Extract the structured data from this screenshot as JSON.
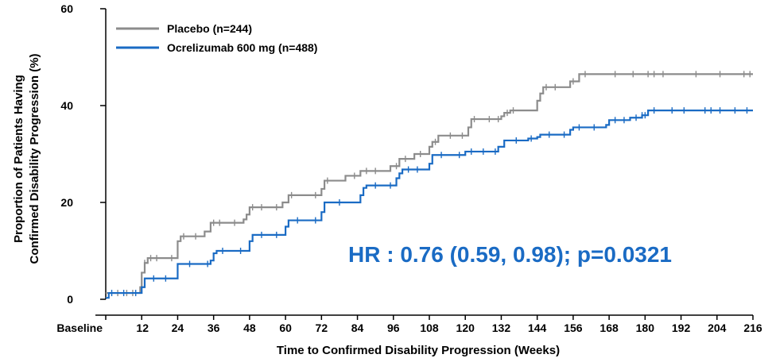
{
  "chart_data": {
    "type": "line",
    "xlabel": "Time to Confirmed Disability Progression (Weeks)",
    "ylabel": [
      "Proportion of Patients Having",
      "Confirmed Disability Progression (%)"
    ],
    "ylim": [
      0,
      60
    ],
    "xlim": [
      0,
      216
    ],
    "x_ticks": [
      "Baseline",
      "12",
      "24",
      "36",
      "48",
      "60",
      "72",
      "84",
      "96",
      "108",
      "120",
      "132",
      "144",
      "156",
      "168",
      "180",
      "192",
      "204",
      "216"
    ],
    "x_tick_values": [
      0,
      12,
      24,
      36,
      48,
      60,
      72,
      84,
      96,
      108,
      120,
      132,
      144,
      156,
      168,
      180,
      192,
      204,
      216
    ],
    "y_ticks": [
      "0",
      "20",
      "40",
      "60"
    ],
    "y_tick_values": [
      0,
      20,
      40,
      60
    ],
    "annotation": "HR : 0.76 (0.59, 0.98); p=0.0321",
    "legend": "top-left",
    "series": [
      {
        "name": "Placebo (n=244)",
        "color": "#8c8c8c",
        "steps": [
          [
            0,
            1.3
          ],
          [
            11.5,
            2.5
          ],
          [
            12,
            5.5
          ],
          [
            13,
            7.5
          ],
          [
            14,
            8.5
          ],
          [
            24,
            12
          ],
          [
            25,
            13
          ],
          [
            33,
            14
          ],
          [
            35,
            15.8
          ],
          [
            46,
            16.5
          ],
          [
            47,
            17.5
          ],
          [
            48,
            19
          ],
          [
            59,
            20
          ],
          [
            61,
            21.5
          ],
          [
            72,
            22.8
          ],
          [
            73,
            24.5
          ],
          [
            80,
            25.5
          ],
          [
            85,
            26.5
          ],
          [
            95,
            27.5
          ],
          [
            98,
            29
          ],
          [
            103,
            30
          ],
          [
            108,
            31.5
          ],
          [
            109,
            32.5
          ],
          [
            111,
            33.8
          ],
          [
            121,
            35.5
          ],
          [
            122,
            37.2
          ],
          [
            132,
            37.8
          ],
          [
            133,
            38.5
          ],
          [
            135,
            39
          ],
          [
            144,
            41
          ],
          [
            145,
            42.5
          ],
          [
            146,
            43.8
          ],
          [
            155,
            45
          ],
          [
            158,
            46.5
          ],
          [
            216,
            46.5
          ]
        ],
        "censor_x": [
          4,
          7,
          9,
          13,
          15,
          17,
          22,
          26,
          30,
          36,
          38,
          43,
          49,
          52,
          57,
          62,
          70,
          74,
          83,
          87,
          90,
          97,
          100,
          105,
          110,
          115,
          119,
          123,
          128,
          131,
          134,
          136,
          147,
          150,
          156,
          160,
          170,
          176,
          181,
          183,
          186,
          197,
          205,
          213,
          215
        ]
      },
      {
        "name": "Ocrelizumab 600 mg (n=488)",
        "color": "#1a6bc4",
        "steps": [
          [
            0,
            0.3
          ],
          [
            1,
            1.3
          ],
          [
            12,
            2.5
          ],
          [
            13,
            4.3
          ],
          [
            24,
            7.3
          ],
          [
            35,
            8
          ],
          [
            36,
            9.5
          ],
          [
            37,
            10
          ],
          [
            48,
            12
          ],
          [
            49,
            13.3
          ],
          [
            60,
            15
          ],
          [
            61,
            16.3
          ],
          [
            72,
            18
          ],
          [
            73,
            20
          ],
          [
            85,
            21.5
          ],
          [
            86,
            23
          ],
          [
            87,
            23.5
          ],
          [
            97,
            25
          ],
          [
            98,
            26
          ],
          [
            99,
            26.8
          ],
          [
            108,
            28
          ],
          [
            109,
            29.8
          ],
          [
            120,
            30.5
          ],
          [
            131,
            31.5
          ],
          [
            133,
            32.8
          ],
          [
            141,
            33.2
          ],
          [
            144,
            33.5
          ],
          [
            145,
            34
          ],
          [
            155,
            35
          ],
          [
            156,
            35.5
          ],
          [
            167,
            36
          ],
          [
            168,
            37
          ],
          [
            175,
            37.5
          ],
          [
            179,
            38
          ],
          [
            181,
            39
          ],
          [
            216,
            39
          ]
        ],
        "censor_x": [
          2,
          6,
          10,
          16,
          20,
          28,
          34,
          39,
          45,
          52,
          57,
          64,
          70,
          78,
          90,
          95,
          101,
          104,
          112,
          118,
          122,
          126,
          130,
          137,
          142,
          148,
          153,
          158,
          163,
          170,
          173,
          177,
          179,
          180,
          183,
          189,
          193,
          200,
          202,
          205,
          210,
          214
        ]
      }
    ]
  }
}
